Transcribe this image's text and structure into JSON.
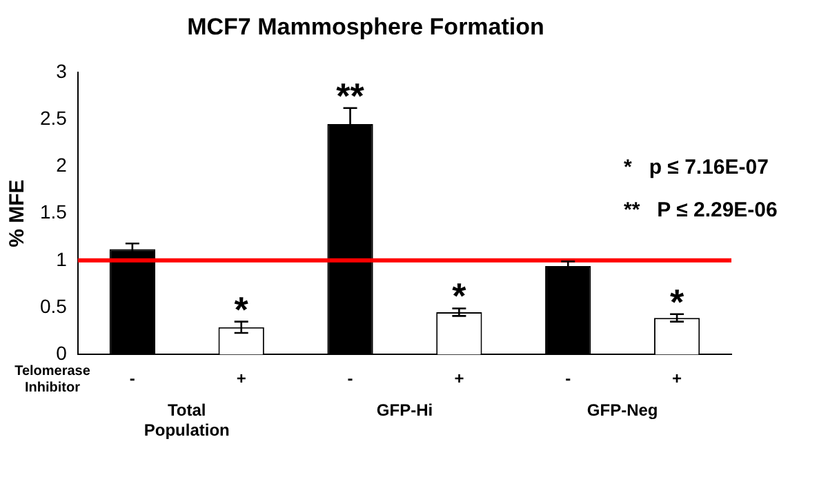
{
  "chart_data": {
    "type": "bar",
    "title": "MCF7 Mammosphere Formation",
    "ylabel": "% MFE",
    "legend_title": "Telomerase Inhibitor",
    "categories": [
      "Total Population",
      "GFP-Hi",
      "GFP-Neg"
    ],
    "series": [
      {
        "name": "-",
        "color": "#000000",
        "values": [
          1.12,
          2.45,
          0.94
        ],
        "errors": [
          0.06,
          0.17,
          0.05
        ],
        "value_labels": [
          null,
          "**",
          null
        ]
      },
      {
        "name": "+",
        "color": "#ffffff",
        "values": [
          0.29,
          0.45,
          0.39
        ],
        "errors": [
          0.06,
          0.04,
          0.04
        ],
        "value_labels": [
          "*",
          "*",
          "*"
        ]
      }
    ],
    "ylim": [
      0,
      3
    ],
    "yticks": [
      0,
      0.5,
      1,
      1.5,
      2,
      2.5,
      3
    ],
    "grid": false,
    "legend": false,
    "ref_lines": [
      {
        "axis": "y",
        "value": 1,
        "color": "#ff0000"
      }
    ],
    "annotations": [
      "*   p ≤ 7.16E-07",
      "**   P ≤ 2.29E-06"
    ]
  }
}
